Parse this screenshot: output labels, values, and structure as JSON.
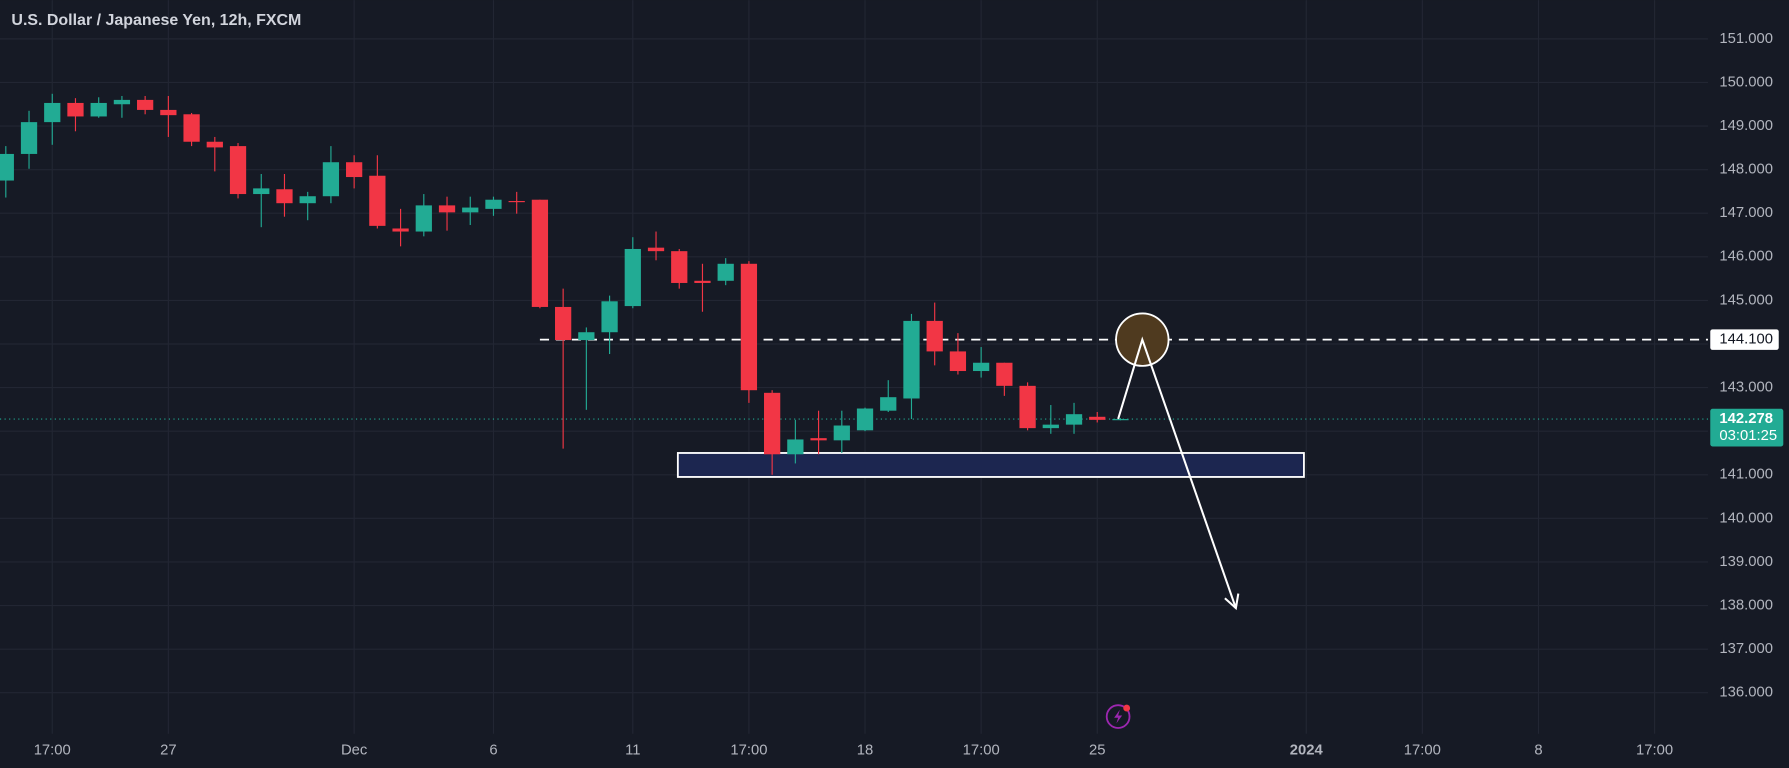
{
  "chart_data": {
    "type": "candlestick",
    "title": "U.S. Dollar / Japanese Yen, 12h, FXCM",
    "up_color": "#22ab94",
    "down_color": "#f23645",
    "grid": true,
    "xlim": [
      -0.25,
      73.3
    ],
    "ylim": [
      135.06,
      151.89
    ],
    "xticks": [
      {
        "value": 2,
        "label": "17:00"
      },
      {
        "value": 7,
        "label": "27"
      },
      {
        "value": 15,
        "label": "Dec"
      },
      {
        "value": 21,
        "label": "6"
      },
      {
        "value": 27,
        "label": "11"
      },
      {
        "value": 32,
        "label": "17:00"
      },
      {
        "value": 37,
        "label": "18"
      },
      {
        "value": 42,
        "label": "17:00"
      },
      {
        "value": 47,
        "label": "25"
      },
      {
        "value": 56,
        "label": "2024"
      },
      {
        "value": 61,
        "label": "17:00"
      },
      {
        "value": 66,
        "label": "8"
      },
      {
        "value": 71,
        "label": "17:00"
      }
    ],
    "yticks": [
      {
        "value": 136,
        "label": "136.000"
      },
      {
        "value": 137,
        "label": "137.000"
      },
      {
        "value": 138,
        "label": "138.000"
      },
      {
        "value": 139,
        "label": "139.000"
      },
      {
        "value": 140,
        "label": "140.000"
      },
      {
        "value": 141,
        "label": "141.000"
      },
      {
        "value": 142,
        "label": "142.000"
      },
      {
        "value": 143,
        "label": "143.000"
      },
      {
        "value": 144,
        "label": "144.000"
      },
      {
        "value": 145,
        "label": "145.000"
      },
      {
        "value": 146,
        "label": "146.000"
      },
      {
        "value": 147,
        "label": "147.000"
      },
      {
        "value": 148,
        "label": "148.000"
      },
      {
        "value": 149,
        "label": "149.000"
      },
      {
        "value": 150,
        "label": "150.000"
      },
      {
        "value": 151,
        "label": "151.000"
      }
    ],
    "open": [
      147.75,
      148.36,
      149.09,
      149.53,
      149.22,
      149.5,
      149.6,
      149.37,
      149.27,
      148.64,
      148.54,
      147.44,
      147.55,
      147.23,
      147.39,
      148.17,
      147.86,
      146.65,
      146.58,
      147.18,
      147.02,
      147.1,
      147.28,
      147.31,
      144.85,
      144.09,
      144.27,
      144.87,
      146.21,
      146.13,
      145.45,
      145.45,
      145.84,
      142.88,
      141.47,
      141.84,
      141.79,
      142.02,
      142.47,
      142.75,
      144.53,
      143.83,
      143.38,
      143.57,
      143.04,
      142.07,
      142.15,
      142.33,
      142.26
    ],
    "high": [
      148.54,
      149.35,
      149.74,
      149.64,
      149.66,
      149.69,
      149.69,
      149.69,
      149.3,
      148.75,
      148.61,
      147.9,
      147.9,
      147.49,
      148.54,
      148.33,
      148.33,
      147.1,
      147.44,
      147.38,
      147.38,
      147.38,
      147.49,
      147.31,
      145.27,
      144.38,
      145.11,
      146.45,
      146.58,
      146.18,
      145.84,
      145.97,
      145.9,
      142.94,
      142.26,
      142.47,
      142.47,
      142.54,
      143.17,
      144.69,
      144.95,
      144.25,
      143.93,
      143.57,
      143.12,
      142.6,
      142.65,
      142.44,
      142.3
    ],
    "low": [
      147.36,
      148.02,
      148.57,
      148.88,
      149.19,
      149.19,
      149.27,
      148.75,
      148.54,
      147.96,
      147.34,
      146.68,
      146.92,
      146.84,
      147.23,
      147.57,
      146.65,
      146.24,
      146.47,
      146.6,
      146.73,
      146.94,
      146.99,
      144.82,
      141.6,
      142.49,
      143.77,
      144.82,
      145.92,
      145.27,
      144.74,
      145.35,
      142.65,
      141.0,
      141.26,
      141.47,
      141.5,
      142.0,
      142.44,
      142.28,
      143.51,
      143.3,
      143.23,
      142.81,
      142.02,
      141.94,
      141.94,
      142.2,
      142.25
    ],
    "close": [
      148.36,
      149.09,
      149.53,
      149.22,
      149.53,
      149.6,
      149.37,
      149.25,
      148.64,
      148.51,
      147.44,
      147.57,
      147.23,
      147.39,
      148.17,
      147.83,
      146.71,
      146.58,
      147.18,
      147.02,
      147.13,
      147.31,
      147.26,
      144.85,
      144.09,
      144.27,
      144.98,
      146.18,
      146.13,
      145.4,
      145.4,
      145.84,
      142.94,
      141.47,
      141.81,
      141.79,
      142.13,
      142.52,
      142.78,
      144.53,
      143.83,
      143.38,
      143.57,
      143.04,
      142.07,
      142.15,
      142.39,
      142.26,
      142.278
    ],
    "hline": {
      "value": 144.1,
      "label": "144.100",
      "color": "#ffffff"
    },
    "last": {
      "value": 142.278,
      "countdown": "03:01:25",
      "color": "#22ab94"
    },
    "zone": {
      "x": [
        28.94,
        55.9
      ],
      "y": [
        140.95,
        141.5
      ],
      "color": "#1c2650"
    },
    "circle": {
      "x": 48.94,
      "y": 144.1,
      "color": "#4f3a1f"
    },
    "arrow": {
      "x": [
        47.9,
        48.94,
        52.97
      ],
      "y": [
        142.28,
        144.1,
        137.94
      ]
    }
  }
}
